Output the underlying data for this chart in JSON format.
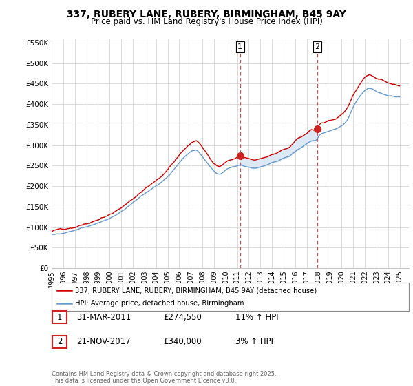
{
  "title1": "337, RUBERY LANE, RUBERY, BIRMINGHAM, B45 9AY",
  "title2": "Price paid vs. HM Land Registry's House Price Index (HPI)",
  "ylabel_ticks": [
    "£0",
    "£50K",
    "£100K",
    "£150K",
    "£200K",
    "£250K",
    "£300K",
    "£350K",
    "£400K",
    "£450K",
    "£500K",
    "£550K"
  ],
  "ytick_values": [
    0,
    50000,
    100000,
    150000,
    200000,
    250000,
    300000,
    350000,
    400000,
    450000,
    500000,
    550000
  ],
  "ylim": [
    0,
    560000
  ],
  "year_start": 1995,
  "year_end": 2025,
  "marker1_year": 2011.25,
  "marker1_value": 274550,
  "marker1_label": "1",
  "marker1_date": "31-MAR-2011",
  "marker1_price": "£274,550",
  "marker1_hpi": "11% ↑ HPI",
  "marker2_year": 2017.9,
  "marker2_value": 340000,
  "marker2_label": "2",
  "marker2_date": "21-NOV-2017",
  "marker2_price": "£340,000",
  "marker2_hpi": "3% ↑ HPI",
  "legend_label1": "337, RUBERY LANE, RUBERY, BIRMINGHAM, B45 9AY (detached house)",
  "legend_label2": "HPI: Average price, detached house, Birmingham",
  "footer": "Contains HM Land Registry data © Crown copyright and database right 2025.\nThis data is licensed under the Open Government Licence v3.0.",
  "line1_color": "#cc0000",
  "line2_color": "#6699cc",
  "fill_color": "#dce9f5",
  "background_color": "#ffffff",
  "grid_color": "#cccccc",
  "marker_vline_color": "#dd4444"
}
